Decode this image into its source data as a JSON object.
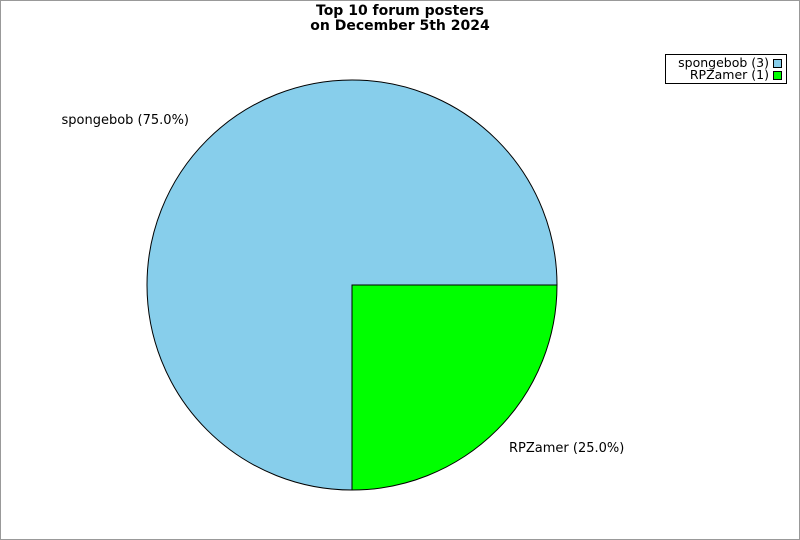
{
  "page": {
    "background": "#ffffff",
    "border_color": "#999999"
  },
  "chart_data": {
    "type": "pie",
    "title": "Top 10 forum posters",
    "subtitle": "on December 5th 2024",
    "start_angle_deg": 90,
    "direction": "clockwise",
    "outline_color": "#000000",
    "legend_position": "top-right",
    "slices": [
      {
        "name": "spongebob",
        "value": 3,
        "percent": 75.0,
        "color": "#87CEEB",
        "callout": "spongebob (75.0%)",
        "legend_label": "spongebob (3)"
      },
      {
        "name": "RPZamer",
        "value": 1,
        "percent": 25.0,
        "color": "#00FF00",
        "callout": "RPZamer (25.0%)",
        "legend_label": "RPZamer (1)"
      }
    ]
  }
}
